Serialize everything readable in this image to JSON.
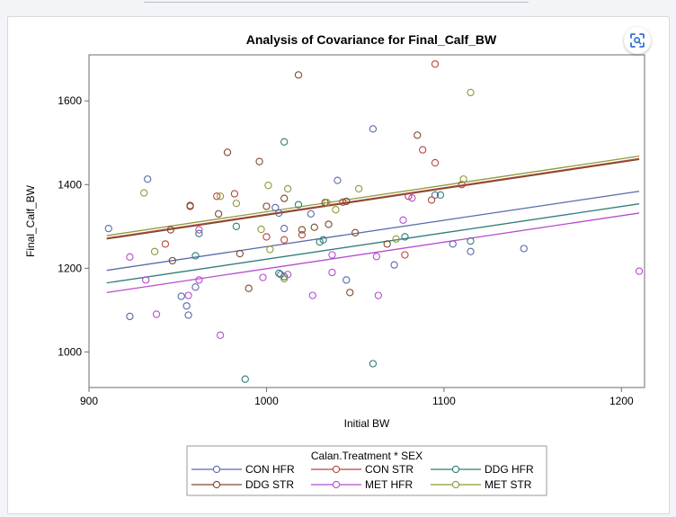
{
  "chart_data": {
    "type": "scatter",
    "title": "Analysis of Covariance for Final_Calf_BW",
    "xlabel": "Initial BW",
    "ylabel": "Final_Calf_BW",
    "xlim": [
      900,
      1213
    ],
    "ylim": [
      915,
      1710
    ],
    "xticks": [
      "900",
      "1000",
      "1100",
      "1200"
    ],
    "yticks": [
      "1000",
      "1200",
      "1400",
      "1600"
    ],
    "legend": {
      "title": "Calan.Treatment * SEX",
      "placement": "bottom"
    },
    "series": [
      {
        "name": "CON HFR",
        "color": "#5a6aaa",
        "line": [
          [
            910,
            1195
          ],
          [
            1210,
            1384
          ]
        ],
        "points": [
          [
            911,
            1295
          ],
          [
            923,
            1085
          ],
          [
            933,
            1413
          ],
          [
            952,
            1133
          ],
          [
            955,
            1110
          ],
          [
            956,
            1088
          ],
          [
            960,
            1155
          ],
          [
            1005,
            1345
          ],
          [
            1007,
            1332
          ],
          [
            1008,
            1185
          ],
          [
            1010,
            1295
          ],
          [
            1025,
            1330
          ],
          [
            1040,
            1410
          ],
          [
            1045,
            1172
          ],
          [
            1060,
            1533
          ],
          [
            1072,
            1208
          ],
          [
            1095,
            1375
          ],
          [
            1105,
            1258
          ],
          [
            1115,
            1240
          ],
          [
            1145,
            1247
          ]
        ]
      },
      {
        "name": "CON STR",
        "color": "#b8463d",
        "line": [
          [
            910,
            1272
          ],
          [
            1210,
            1462
          ]
        ],
        "points": [
          [
            943,
            1258
          ],
          [
            957,
            1350
          ],
          [
            972,
            1372
          ],
          [
            982,
            1378
          ],
          [
            1000,
            1275
          ],
          [
            1010,
            1268
          ],
          [
            1020,
            1280
          ],
          [
            1043,
            1358
          ],
          [
            1078,
            1232
          ],
          [
            1080,
            1372
          ],
          [
            1088,
            1483
          ],
          [
            1093,
            1363
          ],
          [
            1095,
            1688
          ],
          [
            1095,
            1452
          ],
          [
            1110,
            1400
          ]
        ]
      },
      {
        "name": "DDG HFR",
        "color": "#2f7d78",
        "line": [
          [
            910,
            1165
          ],
          [
            1210,
            1354
          ]
        ],
        "points": [
          [
            960,
            1230
          ],
          [
            962,
            1283
          ],
          [
            983,
            1300
          ],
          [
            988,
            935
          ],
          [
            1007,
            1188
          ],
          [
            1010,
            1180
          ],
          [
            1010,
            1502
          ],
          [
            1018,
            1352
          ],
          [
            1030,
            1263
          ],
          [
            1032,
            1268
          ],
          [
            1060,
            972
          ],
          [
            1078,
            1275
          ],
          [
            1098,
            1375
          ],
          [
            1115,
            1265
          ]
        ]
      },
      {
        "name": "DDG STR",
        "color": "#7d4a2d",
        "line": [
          [
            910,
            1270
          ],
          [
            1210,
            1460
          ]
        ],
        "points": [
          [
            946,
            1292
          ],
          [
            947,
            1218
          ],
          [
            957,
            1348
          ],
          [
            973,
            1330
          ],
          [
            978,
            1477
          ],
          [
            985,
            1235
          ],
          [
            990,
            1152
          ],
          [
            996,
            1455
          ],
          [
            1000,
            1348
          ],
          [
            1010,
            1367
          ],
          [
            1018,
            1662
          ],
          [
            1020,
            1292
          ],
          [
            1027,
            1298
          ],
          [
            1033,
            1357
          ],
          [
            1035,
            1305
          ],
          [
            1045,
            1360
          ],
          [
            1047,
            1142
          ],
          [
            1050,
            1285
          ],
          [
            1068,
            1258
          ],
          [
            1085,
            1518
          ]
        ]
      },
      {
        "name": "MET HFR",
        "color": "#b84bd0",
        "line": [
          [
            910,
            1142
          ],
          [
            1210,
            1332
          ]
        ],
        "points": [
          [
            923,
            1227
          ],
          [
            932,
            1172
          ],
          [
            938,
            1090
          ],
          [
            956,
            1135
          ],
          [
            962,
            1172
          ],
          [
            962,
            1292
          ],
          [
            974,
            1040
          ],
          [
            998,
            1178
          ],
          [
            1012,
            1185
          ],
          [
            1026,
            1135
          ],
          [
            1037,
            1190
          ],
          [
            1037,
            1232
          ],
          [
            1062,
            1228
          ],
          [
            1063,
            1135
          ],
          [
            1077,
            1315
          ],
          [
            1082,
            1368
          ],
          [
            1210,
            1193
          ]
        ]
      },
      {
        "name": "MET STR",
        "color": "#8d9a37",
        "line": [
          [
            910,
            1278
          ],
          [
            1210,
            1468
          ]
        ],
        "points": [
          [
            931,
            1380
          ],
          [
            937,
            1240
          ],
          [
            974,
            1372
          ],
          [
            983,
            1355
          ],
          [
            997,
            1293
          ],
          [
            1001,
            1398
          ],
          [
            1002,
            1245
          ],
          [
            1010,
            1175
          ],
          [
            1012,
            1390
          ],
          [
            1034,
            1357
          ],
          [
            1039,
            1340
          ],
          [
            1052,
            1390
          ],
          [
            1073,
            1270
          ],
          [
            1111,
            1413
          ],
          [
            1115,
            1620
          ]
        ]
      }
    ]
  }
}
